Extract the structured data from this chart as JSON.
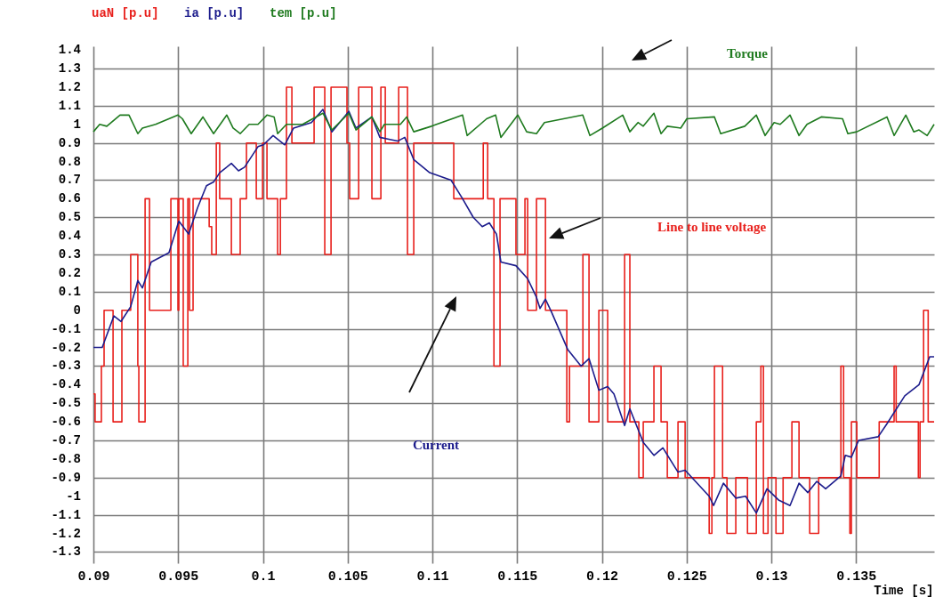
{
  "chart_data": {
    "type": "line",
    "xlabel": "Time [s]",
    "xlim": [
      0.09,
      0.1396
    ],
    "ylim": [
      -1.36,
      1.42
    ],
    "xticks": [
      0.09,
      0.095,
      0.1,
      0.105,
      0.11,
      0.115,
      0.12,
      0.125,
      0.13,
      0.135
    ],
    "yticks": [
      1.4,
      1.3,
      1.2,
      1.1,
      1,
      0.9,
      0.8,
      0.7,
      0.6,
      0.5,
      0.4,
      0.3,
      0.2,
      0.1,
      0,
      -0.1,
      -0.2,
      -0.3,
      -0.4,
      -0.5,
      -0.6,
      -0.7,
      -0.8,
      -0.9,
      -1,
      -1.1,
      -1.2,
      -1.3
    ],
    "grid": true,
    "legend": "top left",
    "annotations": [
      "Torque",
      "Line to line voltage",
      "Current"
    ],
    "series": [
      {
        "name": "uaN [p.u]",
        "type": "step",
        "color": "#e8201c",
        "x": [
          0.09,
          0.0901,
          0.09047,
          0.09063,
          0.09116,
          0.09168,
          0.0922,
          0.09262,
          0.09268,
          0.09305,
          0.09331,
          0.09457,
          0.09499,
          0.09504,
          0.0953,
          0.09557,
          0.09567,
          0.09588,
          0.09683,
          0.09698,
          0.09725,
          0.09745,
          0.09814,
          0.09866,
          0.09903,
          0.09961,
          0.09998,
          0.10024,
          0.10087,
          0.10103,
          0.10139,
          0.10171,
          0.10302,
          0.10365,
          0.10402,
          0.10496,
          0.10512,
          0.10565,
          0.10643,
          0.10696,
          0.10722,
          0.10801,
          0.10853,
          0.1089,
          0.11126,
          0.113,
          0.11326,
          0.11363,
          0.11399,
          0.11493,
          0.11546,
          0.11562,
          0.11614,
          0.11667,
          0.11793,
          0.11809,
          0.11888,
          0.11924,
          0.11982,
          0.12034,
          0.12134,
          0.12165,
          0.12218,
          0.12244,
          0.12307,
          0.12349,
          0.12386,
          0.12449,
          0.12491,
          0.12633,
          0.12649,
          0.12664,
          0.12712,
          0.12738,
          0.1279,
          0.12859,
          0.12911,
          0.12938,
          0.12953,
          0.1298,
          0.13027,
          0.13069,
          0.13121,
          0.13163,
          0.13226,
          0.13279,
          0.1341,
          0.13426,
          0.13463,
          0.13472,
          0.13504,
          0.13636,
          0.13724,
          0.13736,
          0.13867,
          0.13877,
          0.13898,
          0.13925,
          0.1396
        ],
        "values": [
          -0.45,
          -0.6,
          -0.3,
          0,
          -0.6,
          0,
          0.3,
          -0.3,
          -0.6,
          0.6,
          0,
          0.6,
          0,
          0.6,
          -0.3,
          0.6,
          0,
          0.6,
          0.45,
          0.3,
          0.9,
          0.6,
          0.3,
          0.6,
          0.9,
          0.6,
          0.9,
          0.6,
          0.3,
          0.6,
          1.2,
          0.9,
          1.2,
          0.3,
          1.2,
          0.9,
          0.6,
          1.2,
          0.6,
          1.2,
          0.9,
          1.2,
          0.3,
          0.9,
          0.6,
          0.9,
          0.6,
          -0.3,
          0.6,
          0.3,
          0.6,
          0,
          0.6,
          0,
          -0.6,
          -0.3,
          0.3,
          -0.6,
          0,
          -0.6,
          0.3,
          -0.6,
          -0.9,
          -0.6,
          -0.3,
          -0.6,
          -0.9,
          -0.6,
          -0.9,
          -1.2,
          -0.9,
          -0.3,
          -0.9,
          -1.2,
          -0.9,
          -1.2,
          -0.6,
          -0.3,
          -1.2,
          -0.9,
          -1.2,
          -0.9,
          -0.6,
          -0.9,
          -1.2,
          -0.9,
          -0.3,
          -0.9,
          -1.2,
          -0.6,
          -0.9,
          -0.6,
          -0.3,
          -0.6,
          -0.9,
          -0.6,
          0,
          -0.6,
          -0.6
        ]
      },
      {
        "name": "ia [p.u]",
        "type": "line",
        "color": "#1c1c8c",
        "x": [
          0.09,
          0.09052,
          0.09121,
          0.09163,
          0.0922,
          0.09262,
          0.09289,
          0.09341,
          0.09446,
          0.09504,
          0.09562,
          0.09614,
          0.09667,
          0.09709,
          0.09745,
          0.09814,
          0.09856,
          0.09892,
          0.09971,
          0.10003,
          0.1006,
          0.10129,
          0.10181,
          0.10286,
          0.10354,
          0.10407,
          0.10507,
          0.10549,
          0.10643,
          0.1069,
          0.10743,
          0.10795,
          0.10837,
          0.1089,
          0.10984,
          0.1111,
          0.11178,
          0.11241,
          0.11294,
          0.11336,
          0.11378,
          0.11404,
          0.11493,
          0.11562,
          0.11614,
          0.11635,
          0.11667,
          0.11703,
          0.11798,
          0.11877,
          0.11924,
          0.11982,
          0.12034,
          0.12071,
          0.12134,
          0.12165,
          0.12244,
          0.12307,
          0.1236,
          0.12449,
          0.12491,
          0.12633,
          0.12659,
          0.12717,
          0.1279,
          0.12848,
          0.12911,
          0.12974,
          0.13042,
          0.1311,
          0.13163,
          0.13215,
          0.13268,
          0.1332,
          0.1341,
          0.13436,
          0.13472,
          0.13514,
          0.1363,
          0.13682,
          0.13787,
          0.13871,
          0.13934,
          0.1396
        ],
        "values": [
          -0.2,
          -0.2,
          -0.03,
          -0.06,
          0.02,
          0.16,
          0.12,
          0.26,
          0.31,
          0.48,
          0.41,
          0.55,
          0.67,
          0.69,
          0.74,
          0.79,
          0.75,
          0.77,
          0.88,
          0.89,
          0.94,
          0.89,
          0.98,
          1.01,
          1.08,
          0.96,
          1.07,
          0.98,
          1.04,
          0.93,
          0.92,
          0.91,
          0.93,
          0.81,
          0.74,
          0.7,
          0.6,
          0.5,
          0.45,
          0.47,
          0.41,
          0.26,
          0.24,
          0.17,
          0.07,
          0.01,
          0.06,
          -0.01,
          -0.21,
          -0.3,
          -0.26,
          -0.43,
          -0.41,
          -0.45,
          -0.62,
          -0.53,
          -0.71,
          -0.78,
          -0.74,
          -0.87,
          -0.86,
          -1,
          -1.05,
          -0.93,
          -1.01,
          -1,
          -1.09,
          -0.96,
          -1.02,
          -1.05,
          -0.93,
          -0.98,
          -0.92,
          -0.96,
          -0.89,
          -0.78,
          -0.79,
          -0.7,
          -0.68,
          -0.61,
          -0.46,
          -0.4,
          -0.25,
          -0.25
        ]
      },
      {
        "name": "tem [p.u]",
        "type": "line",
        "color": "#1e7a1e",
        "x": [
          0.09,
          0.09037,
          0.09079,
          0.09157,
          0.0921,
          0.09262,
          0.09289,
          0.09367,
          0.09499,
          0.09525,
          0.09577,
          0.09646,
          0.09709,
          0.09787,
          0.09824,
          0.09866,
          0.09919,
          0.09971,
          0.10024,
          0.10066,
          0.10087,
          0.10139,
          0.10234,
          0.10354,
          0.10407,
          0.10507,
          0.10549,
          0.10643,
          0.1069,
          0.10717,
          0.10811,
          0.10848,
          0.1089,
          0.10995,
          0.11178,
          0.11205,
          0.1132,
          0.11373,
          0.11404,
          0.11504,
          0.11556,
          0.11614,
          0.11661,
          0.11887,
          0.11929,
          0.12003,
          0.12123,
          0.12165,
          0.12213,
          0.12244,
          0.12307,
          0.12349,
          0.12386,
          0.12465,
          0.12501,
          0.12664,
          0.12701,
          0.12843,
          0.12911,
          0.12963,
          0.13016,
          0.13052,
          0.1311,
          0.13163,
          0.1321,
          0.13294,
          0.1342,
          0.13451,
          0.13504,
          0.13682,
          0.13724,
          0.13793,
          0.1384,
          0.13871,
          0.13919,
          0.1396
        ],
        "values": [
          0.96,
          1,
          0.99,
          1.05,
          1.05,
          0.95,
          0.98,
          1,
          1.05,
          1.03,
          0.95,
          1.04,
          0.95,
          1.05,
          0.98,
          0.95,
          1,
          1,
          1.05,
          1.04,
          0.95,
          1,
          1,
          1.06,
          0.97,
          1.06,
          0.97,
          1.04,
          0.96,
          1,
          1,
          1.04,
          0.96,
          0.99,
          1.05,
          0.94,
          1.03,
          1.05,
          0.93,
          1.05,
          0.96,
          0.95,
          1.01,
          1.05,
          0.94,
          0.98,
          1.05,
          0.96,
          1.01,
          0.99,
          1.06,
          0.95,
          0.99,
          0.98,
          1.03,
          1.04,
          0.95,
          0.99,
          1.05,
          0.94,
          1.01,
          1,
          1.05,
          0.94,
          1,
          1.04,
          1.03,
          0.95,
          0.96,
          1.04,
          0.94,
          1.05,
          0.96,
          0.97,
          0.94,
          1
        ]
      }
    ]
  }
}
